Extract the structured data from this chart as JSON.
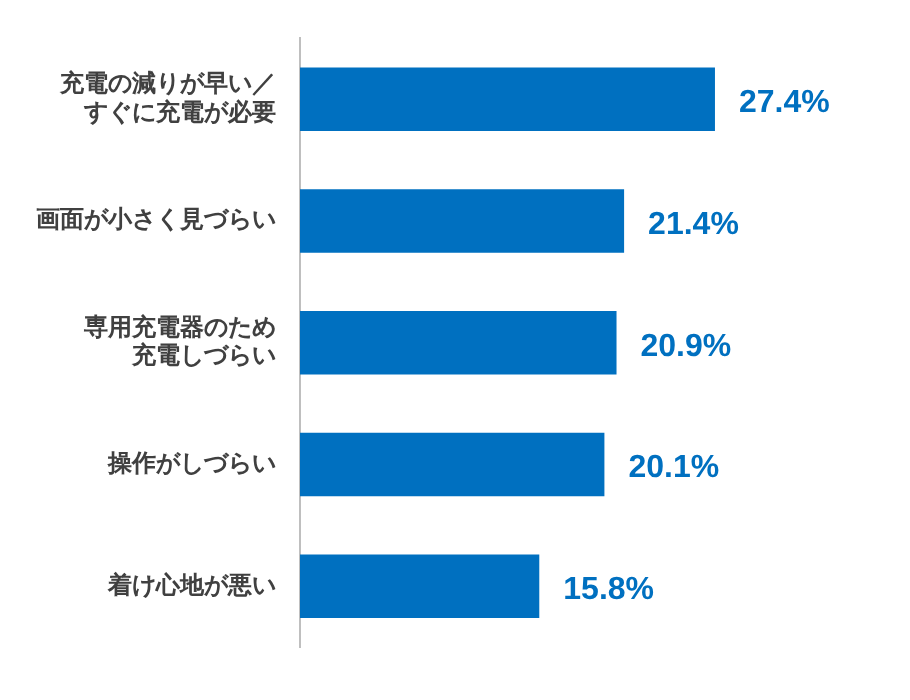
{
  "chart_data": {
    "type": "bar",
    "orientation": "horizontal",
    "categories": [
      "充電の減りが早い／すぐに充電が必要",
      "画面が小さく見づらい",
      "専用充電器のため充電しづらい",
      "操作がしづらい",
      "着け心地が悪い"
    ],
    "series": [
      {
        "color": "#0070c0",
        "values": [
          27.4,
          21.4,
          20.9,
          20.1,
          15.8
        ],
        "value_labels": [
          "27.4%",
          "21.4%",
          "20.9%",
          "20.1%",
          "15.8%"
        ]
      }
    ]
  }
}
